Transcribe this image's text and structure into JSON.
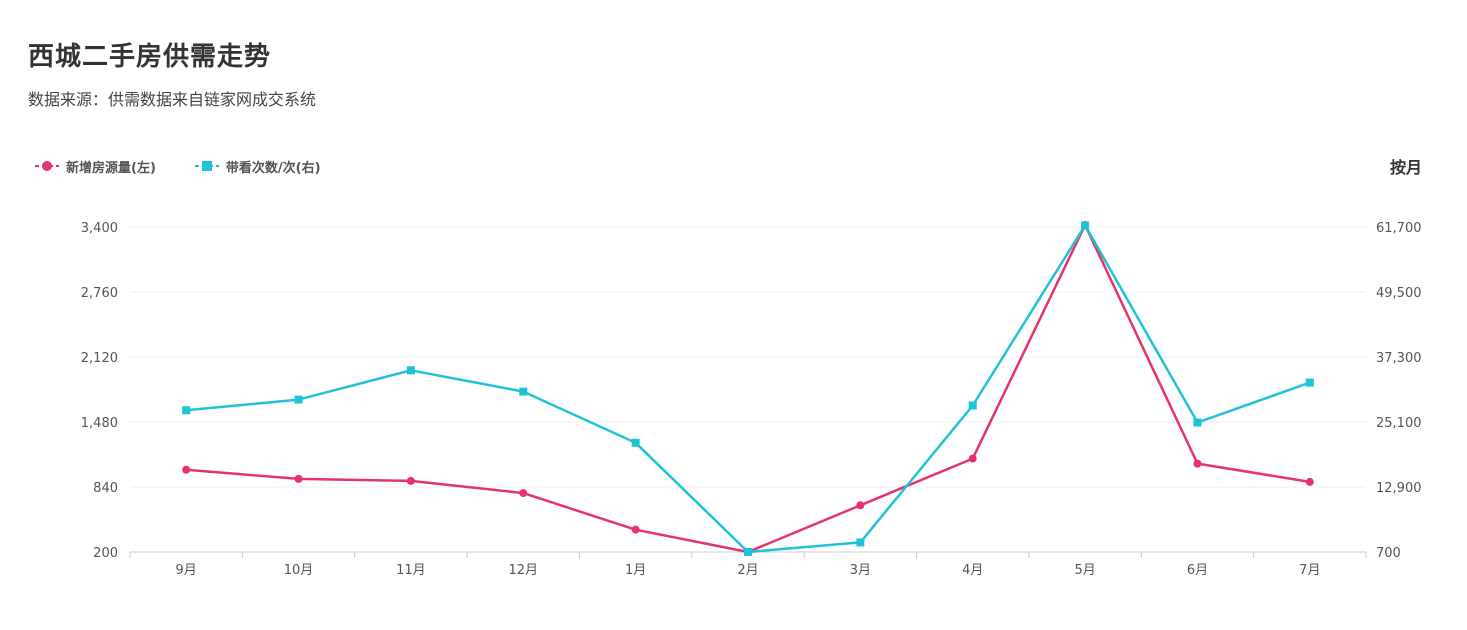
{
  "header": {
    "title": "西城二手房供需走势",
    "subtitle": "数据来源：供需数据来自链家网成交系统",
    "period_label": "按月"
  },
  "legend": [
    {
      "name": "新增房源量(左)",
      "color": "#e6336b",
      "marker": "circle"
    },
    {
      "name": "带看次数/次(右)",
      "color": "#1fc2d8",
      "marker": "square"
    }
  ],
  "chart_data": {
    "type": "line",
    "title": "西城二手房供需走势",
    "categories": [
      "9月",
      "10月",
      "11月",
      "12月",
      "1月",
      "2月",
      "3月",
      "4月",
      "5月",
      "6月",
      "7月"
    ],
    "y_left": {
      "range": [
        200,
        3400
      ],
      "ticks": [
        "200",
        "840",
        "1,480",
        "2,120",
        "2,760",
        "3,400"
      ]
    },
    "y_right": {
      "range": [
        700,
        61700
      ],
      "ticks": [
        "700",
        "12,900",
        "25,100",
        "37,300",
        "49,500",
        "61,700"
      ]
    },
    "grid": true,
    "legend_position": "top-left",
    "series": [
      {
        "name": "新增房源量(左)",
        "axis": "left",
        "color": "#e6336b",
        "marker": "circle",
        "values": [
          1010,
          920,
          900,
          780,
          420,
          200,
          660,
          1120,
          3420,
          1070,
          890
        ]
      },
      {
        "name": "带看次数/次(右)",
        "axis": "right",
        "color": "#1fc2d8",
        "marker": "square",
        "values": [
          27300,
          29300,
          34800,
          30800,
          21200,
          700,
          2500,
          28200,
          62000,
          25000,
          32500
        ]
      }
    ]
  }
}
